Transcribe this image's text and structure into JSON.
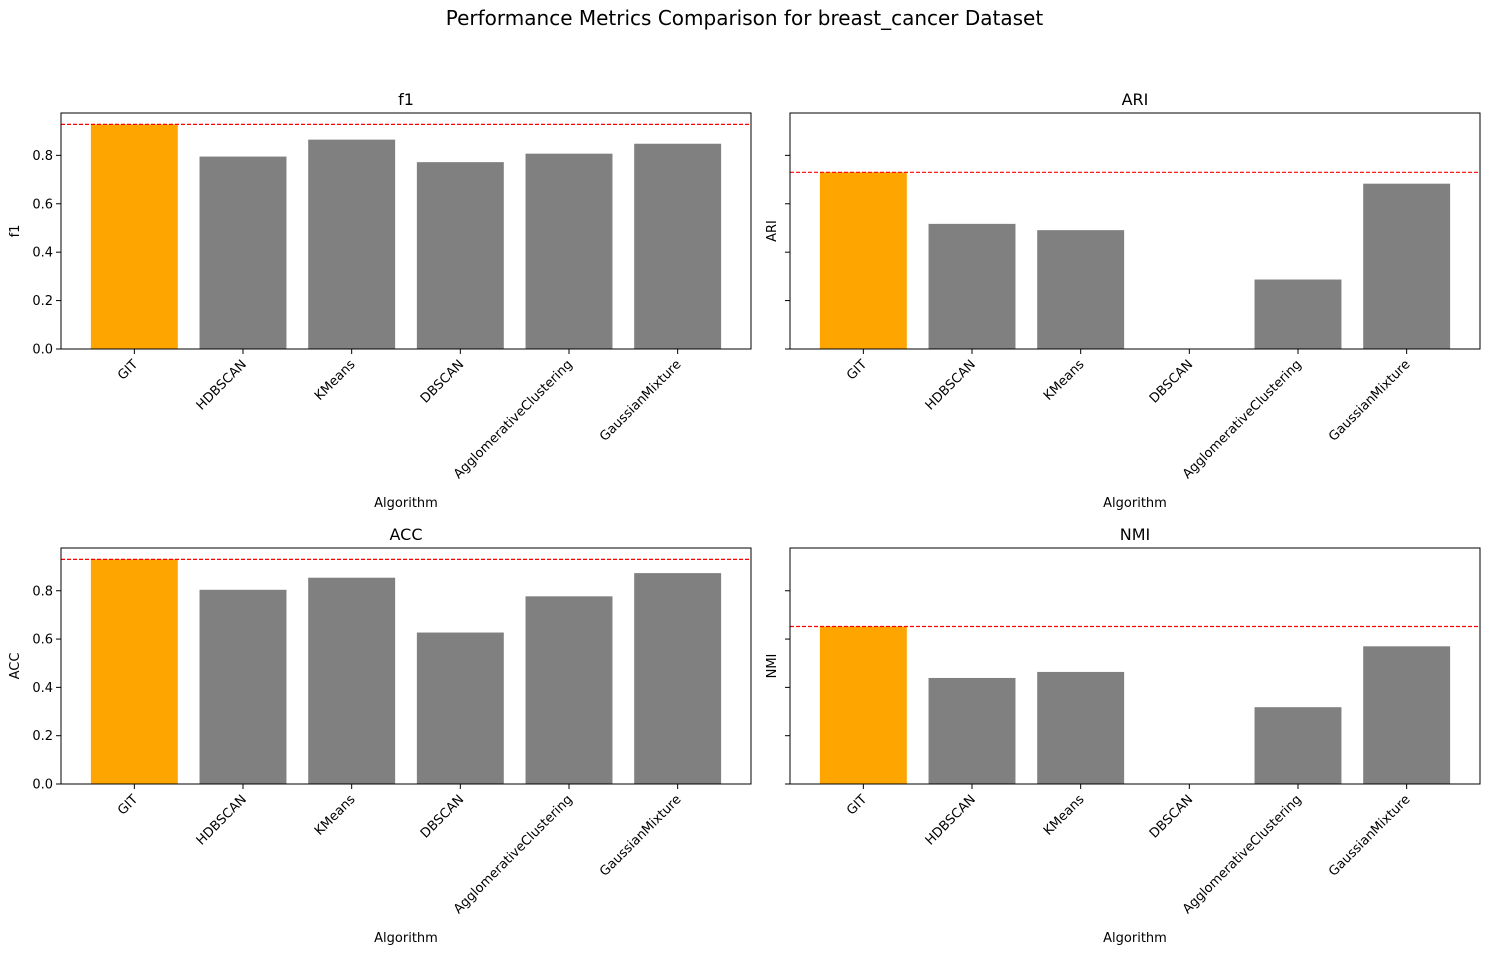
{
  "figure": {
    "suptitle": "Performance Metrics Comparison for breast_cancer Dataset"
  },
  "colors": {
    "highlight": "#FFA500",
    "bar": "#808080",
    "reference_line": "#FF0000"
  },
  "chart_data": [
    {
      "type": "bar",
      "title": "f1",
      "xlabel": "Algorithm",
      "ylabel": "f1",
      "categories": [
        "GIT",
        "HDBSCAN",
        "KMeans",
        "DBSCAN",
        "AgglomerativeClustering",
        "GaussianMixture"
      ],
      "values": [
        0.928,
        0.795,
        0.865,
        0.772,
        0.807,
        0.848
      ],
      "highlight_index": 0,
      "reference_line": 0.928,
      "ylim": [
        0,
        0.975
      ],
      "yticks": [
        "0.0",
        "0.2",
        "0.4",
        "0.6",
        "0.8"
      ],
      "show_ytick_labels": true
    },
    {
      "type": "bar",
      "title": "ARI",
      "xlabel": "Algorithm",
      "ylabel": "ARI",
      "categories": [
        "GIT",
        "HDBSCAN",
        "KMeans",
        "DBSCAN",
        "AgglomerativeClustering",
        "GaussianMixture"
      ],
      "values": [
        0.73,
        0.517,
        0.491,
        0.0,
        0.287,
        0.683
      ],
      "highlight_index": 0,
      "reference_line": 0.73,
      "ylim": [
        0,
        0.975
      ],
      "yticks": [
        "0.0",
        "0.2",
        "0.4",
        "0.6",
        "0.8"
      ],
      "show_ytick_labels": false
    },
    {
      "type": "bar",
      "title": "ACC",
      "xlabel": "Algorithm",
      "ylabel": "ACC",
      "categories": [
        "GIT",
        "HDBSCAN",
        "KMeans",
        "DBSCAN",
        "AgglomerativeClustering",
        "GaussianMixture"
      ],
      "values": [
        0.93,
        0.804,
        0.854,
        0.627,
        0.777,
        0.873
      ],
      "highlight_index": 0,
      "reference_line": 0.93,
      "ylim": [
        0,
        0.977
      ],
      "yticks": [
        "0.0",
        "0.2",
        "0.4",
        "0.6",
        "0.8"
      ],
      "show_ytick_labels": true
    },
    {
      "type": "bar",
      "title": "NMI",
      "xlabel": "Algorithm",
      "ylabel": "NMI",
      "categories": [
        "GIT",
        "HDBSCAN",
        "KMeans",
        "DBSCAN",
        "AgglomerativeClustering",
        "GaussianMixture"
      ],
      "values": [
        0.652,
        0.439,
        0.464,
        0.0,
        0.318,
        0.57
      ],
      "highlight_index": 0,
      "reference_line": 0.652,
      "ylim": [
        0,
        0.977
      ],
      "yticks": [
        "0.0",
        "0.2",
        "0.4",
        "0.6",
        "0.8"
      ],
      "show_ytick_labels": false
    }
  ]
}
